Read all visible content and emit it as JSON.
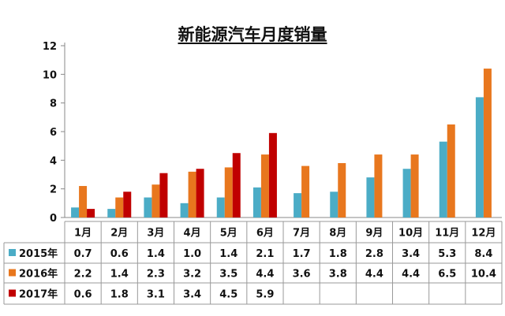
{
  "chart_data": {
    "type": "bar",
    "title": "新能源汽车月度销量",
    "xlabel": "",
    "ylabel": "",
    "ylim": [
      0,
      12
    ],
    "yticks": [
      0,
      2,
      4,
      6,
      8,
      10,
      12
    ],
    "grid": false,
    "legend": "table",
    "categories": [
      "1月",
      "2月",
      "3月",
      "4月",
      "5月",
      "6月",
      "7月",
      "8月",
      "9月",
      "10月",
      "11月",
      "12月"
    ],
    "series": [
      {
        "name": "2015年",
        "color": "#4BACC6",
        "values": [
          0.7,
          0.6,
          1.4,
          1.0,
          1.4,
          2.1,
          1.7,
          1.8,
          2.8,
          3.4,
          5.3,
          8.4
        ],
        "labels": [
          "0.7",
          "0.6",
          "1.4",
          "1.0",
          "1.4",
          "2.1",
          "1.7",
          "1.8",
          "2.8",
          "3.4",
          "5.3",
          "8.4"
        ]
      },
      {
        "name": "2016年",
        "color": "#E8771E",
        "values": [
          2.2,
          1.4,
          2.3,
          3.2,
          3.5,
          4.4,
          3.6,
          3.8,
          4.4,
          4.4,
          6.5,
          10.4
        ],
        "labels": [
          "2.2",
          "1.4",
          "2.3",
          "3.2",
          "3.5",
          "4.4",
          "3.6",
          "3.8",
          "4.4",
          "4.4",
          "6.5",
          "10.4"
        ]
      },
      {
        "name": "2017年",
        "color": "#C00000",
        "values": [
          0.6,
          1.8,
          3.1,
          3.4,
          4.5,
          5.9,
          null,
          null,
          null,
          null,
          null,
          null
        ],
        "labels": [
          "0.6",
          "1.8",
          "3.1",
          "3.4",
          "4.5",
          "5.9",
          "",
          "",
          "",
          "",
          "",
          ""
        ]
      }
    ]
  }
}
